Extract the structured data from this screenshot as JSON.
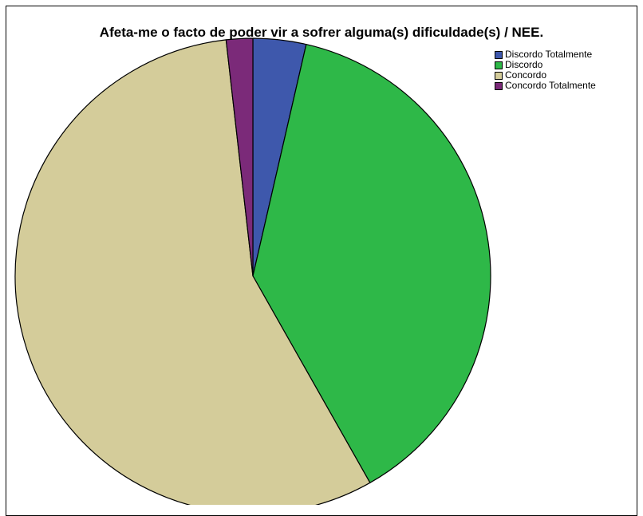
{
  "chart_data": {
    "type": "pie",
    "title": "Afeta-me o facto de poder vir a sofrer alguma(s) dificuldade(s) / NEE.",
    "start_angle_deg": 0,
    "direction": "clockwise",
    "legend_position": "top-right",
    "slices": [
      {
        "label": "Discordo Totalmente",
        "value": 3.6,
        "color": "#3E58AC"
      },
      {
        "label": "Discordo",
        "value": 38.2,
        "color": "#2EB848"
      },
      {
        "label": "Concordo",
        "value": 56.4,
        "color": "#D4CC9A"
      },
      {
        "label": "Concordo Totalmente",
        "value": 1.8,
        "color": "#7B2A79"
      }
    ]
  }
}
